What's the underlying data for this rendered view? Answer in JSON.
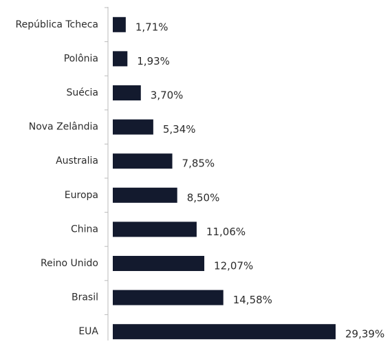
{
  "chart_data": {
    "type": "bar",
    "orientation": "horizontal",
    "categories": [
      "República Tcheca",
      "Polônia",
      "Suécia",
      "Nova Zelândia",
      "Australia",
      "Europa",
      "China",
      "Reino Unido",
      "Brasil",
      "EUA"
    ],
    "values": [
      1.71,
      1.93,
      3.7,
      5.34,
      7.85,
      8.5,
      11.06,
      12.07,
      14.58,
      29.39
    ],
    "value_labels": [
      "1,71%",
      "1,93%",
      "3,70%",
      "5,34%",
      "7,85%",
      "8,50%",
      "11,06%",
      "12,07%",
      "14,58%",
      "29,39%"
    ],
    "color": "#131a2e"
  }
}
